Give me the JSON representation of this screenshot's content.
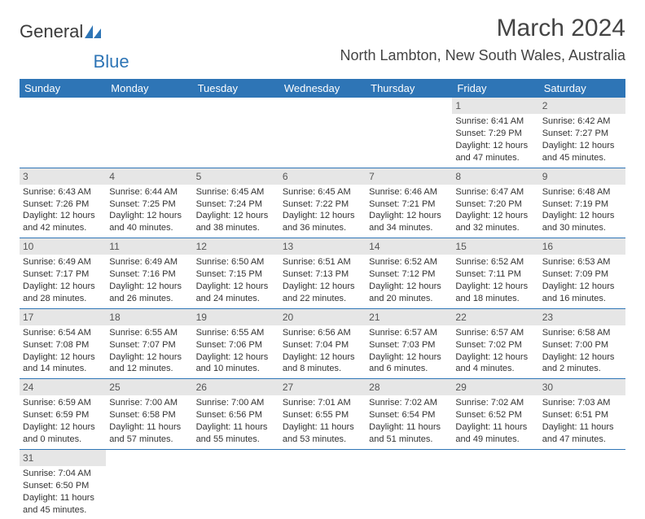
{
  "logo": {
    "text_part1": "General",
    "text_part2": "Blue"
  },
  "header": {
    "month_title": "March 2024",
    "location": "North Lambton, New South Wales, Australia"
  },
  "colors": {
    "header_bg": "#2e75b6",
    "header_fg": "#ffffff",
    "daynum_bg": "#e6e6e6",
    "row_border": "#2e75b6"
  },
  "weekdays": [
    "Sunday",
    "Monday",
    "Tuesday",
    "Wednesday",
    "Thursday",
    "Friday",
    "Saturday"
  ],
  "weeks": [
    [
      {
        "empty": true
      },
      {
        "empty": true
      },
      {
        "empty": true
      },
      {
        "empty": true
      },
      {
        "empty": true
      },
      {
        "day": "1",
        "sunrise": "Sunrise: 6:41 AM",
        "sunset": "Sunset: 7:29 PM",
        "daylight": "Daylight: 12 hours and 47 minutes."
      },
      {
        "day": "2",
        "sunrise": "Sunrise: 6:42 AM",
        "sunset": "Sunset: 7:27 PM",
        "daylight": "Daylight: 12 hours and 45 minutes."
      }
    ],
    [
      {
        "day": "3",
        "sunrise": "Sunrise: 6:43 AM",
        "sunset": "Sunset: 7:26 PM",
        "daylight": "Daylight: 12 hours and 42 minutes."
      },
      {
        "day": "4",
        "sunrise": "Sunrise: 6:44 AM",
        "sunset": "Sunset: 7:25 PM",
        "daylight": "Daylight: 12 hours and 40 minutes."
      },
      {
        "day": "5",
        "sunrise": "Sunrise: 6:45 AM",
        "sunset": "Sunset: 7:24 PM",
        "daylight": "Daylight: 12 hours and 38 minutes."
      },
      {
        "day": "6",
        "sunrise": "Sunrise: 6:45 AM",
        "sunset": "Sunset: 7:22 PM",
        "daylight": "Daylight: 12 hours and 36 minutes."
      },
      {
        "day": "7",
        "sunrise": "Sunrise: 6:46 AM",
        "sunset": "Sunset: 7:21 PM",
        "daylight": "Daylight: 12 hours and 34 minutes."
      },
      {
        "day": "8",
        "sunrise": "Sunrise: 6:47 AM",
        "sunset": "Sunset: 7:20 PM",
        "daylight": "Daylight: 12 hours and 32 minutes."
      },
      {
        "day": "9",
        "sunrise": "Sunrise: 6:48 AM",
        "sunset": "Sunset: 7:19 PM",
        "daylight": "Daylight: 12 hours and 30 minutes."
      }
    ],
    [
      {
        "day": "10",
        "sunrise": "Sunrise: 6:49 AM",
        "sunset": "Sunset: 7:17 PM",
        "daylight": "Daylight: 12 hours and 28 minutes."
      },
      {
        "day": "11",
        "sunrise": "Sunrise: 6:49 AM",
        "sunset": "Sunset: 7:16 PM",
        "daylight": "Daylight: 12 hours and 26 minutes."
      },
      {
        "day": "12",
        "sunrise": "Sunrise: 6:50 AM",
        "sunset": "Sunset: 7:15 PM",
        "daylight": "Daylight: 12 hours and 24 minutes."
      },
      {
        "day": "13",
        "sunrise": "Sunrise: 6:51 AM",
        "sunset": "Sunset: 7:13 PM",
        "daylight": "Daylight: 12 hours and 22 minutes."
      },
      {
        "day": "14",
        "sunrise": "Sunrise: 6:52 AM",
        "sunset": "Sunset: 7:12 PM",
        "daylight": "Daylight: 12 hours and 20 minutes."
      },
      {
        "day": "15",
        "sunrise": "Sunrise: 6:52 AM",
        "sunset": "Sunset: 7:11 PM",
        "daylight": "Daylight: 12 hours and 18 minutes."
      },
      {
        "day": "16",
        "sunrise": "Sunrise: 6:53 AM",
        "sunset": "Sunset: 7:09 PM",
        "daylight": "Daylight: 12 hours and 16 minutes."
      }
    ],
    [
      {
        "day": "17",
        "sunrise": "Sunrise: 6:54 AM",
        "sunset": "Sunset: 7:08 PM",
        "daylight": "Daylight: 12 hours and 14 minutes."
      },
      {
        "day": "18",
        "sunrise": "Sunrise: 6:55 AM",
        "sunset": "Sunset: 7:07 PM",
        "daylight": "Daylight: 12 hours and 12 minutes."
      },
      {
        "day": "19",
        "sunrise": "Sunrise: 6:55 AM",
        "sunset": "Sunset: 7:06 PM",
        "daylight": "Daylight: 12 hours and 10 minutes."
      },
      {
        "day": "20",
        "sunrise": "Sunrise: 6:56 AM",
        "sunset": "Sunset: 7:04 PM",
        "daylight": "Daylight: 12 hours and 8 minutes."
      },
      {
        "day": "21",
        "sunrise": "Sunrise: 6:57 AM",
        "sunset": "Sunset: 7:03 PM",
        "daylight": "Daylight: 12 hours and 6 minutes."
      },
      {
        "day": "22",
        "sunrise": "Sunrise: 6:57 AM",
        "sunset": "Sunset: 7:02 PM",
        "daylight": "Daylight: 12 hours and 4 minutes."
      },
      {
        "day": "23",
        "sunrise": "Sunrise: 6:58 AM",
        "sunset": "Sunset: 7:00 PM",
        "daylight": "Daylight: 12 hours and 2 minutes."
      }
    ],
    [
      {
        "day": "24",
        "sunrise": "Sunrise: 6:59 AM",
        "sunset": "Sunset: 6:59 PM",
        "daylight": "Daylight: 12 hours and 0 minutes."
      },
      {
        "day": "25",
        "sunrise": "Sunrise: 7:00 AM",
        "sunset": "Sunset: 6:58 PM",
        "daylight": "Daylight: 11 hours and 57 minutes."
      },
      {
        "day": "26",
        "sunrise": "Sunrise: 7:00 AM",
        "sunset": "Sunset: 6:56 PM",
        "daylight": "Daylight: 11 hours and 55 minutes."
      },
      {
        "day": "27",
        "sunrise": "Sunrise: 7:01 AM",
        "sunset": "Sunset: 6:55 PM",
        "daylight": "Daylight: 11 hours and 53 minutes."
      },
      {
        "day": "28",
        "sunrise": "Sunrise: 7:02 AM",
        "sunset": "Sunset: 6:54 PM",
        "daylight": "Daylight: 11 hours and 51 minutes."
      },
      {
        "day": "29",
        "sunrise": "Sunrise: 7:02 AM",
        "sunset": "Sunset: 6:52 PM",
        "daylight": "Daylight: 11 hours and 49 minutes."
      },
      {
        "day": "30",
        "sunrise": "Sunrise: 7:03 AM",
        "sunset": "Sunset: 6:51 PM",
        "daylight": "Daylight: 11 hours and 47 minutes."
      }
    ],
    [
      {
        "day": "31",
        "sunrise": "Sunrise: 7:04 AM",
        "sunset": "Sunset: 6:50 PM",
        "daylight": "Daylight: 11 hours and 45 minutes."
      },
      {
        "empty": true
      },
      {
        "empty": true
      },
      {
        "empty": true
      },
      {
        "empty": true
      },
      {
        "empty": true
      },
      {
        "empty": true
      }
    ]
  ]
}
